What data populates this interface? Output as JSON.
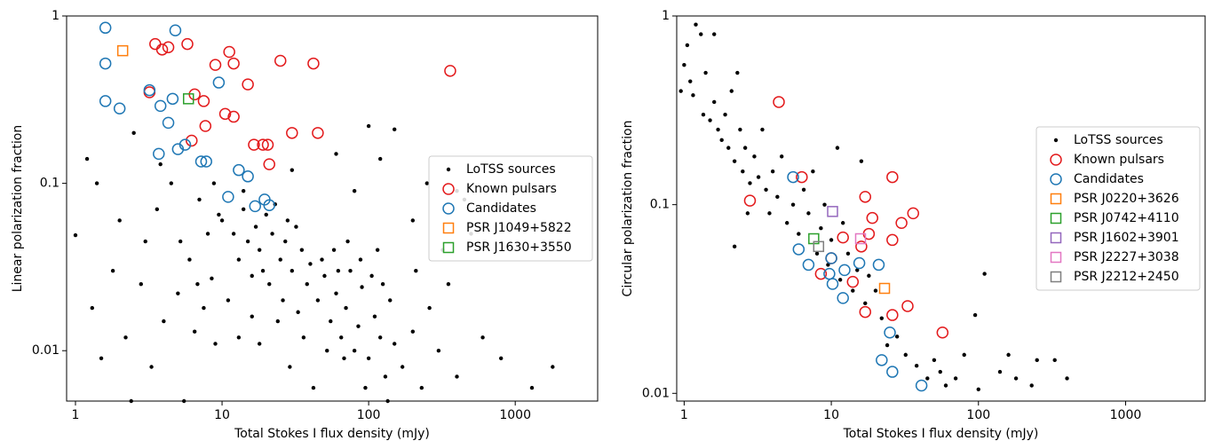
{
  "chart_data": [
    {
      "type": "scatter",
      "xlabel": "Total Stokes I flux density (mJy)",
      "ylabel": "Linear polarization fraction",
      "xscale": "log",
      "yscale": "log",
      "xlim": [
        0.87,
        3650
      ],
      "ylim": [
        0.005,
        1
      ],
      "xticks": [
        1,
        10,
        100,
        1000
      ],
      "yticks": [
        0.01,
        0.1,
        1
      ],
      "legend": "center right",
      "series": [
        {
          "name": "LoTSS sources",
          "marker": "dot",
          "color": "#000000",
          "x": [
            10,
            12,
            14,
            15,
            17,
            18,
            20,
            22,
            25,
            27,
            30,
            32,
            35,
            38,
            40,
            13,
            16,
            19,
            23,
            28,
            45,
            50,
            55,
            60,
            65,
            70,
            75,
            80,
            85,
            90,
            100,
            110,
            120,
            130,
            140,
            150,
            48,
            58,
            68,
            95,
            170,
            200,
            230,
            260,
            300,
            350,
            400,
            500,
            600,
            800,
            1300,
            1800,
            450,
            320,
            210,
            100,
            150,
            120,
            60,
            30,
            250,
            80,
            200,
            400,
            1,
            1.2,
            1.3,
            1.5,
            1.8,
            2,
            2.2,
            2.5,
            2.8,
            3,
            3.3,
            3.6,
            4,
            4.5,
            5,
            5.5,
            6,
            6.5,
            7,
            7.5,
            8,
            8.5,
            9,
            9.5,
            2.4,
            3.8,
            5.2,
            6.8,
            8.8,
            1.4,
            11,
            13,
            14,
            16,
            18,
            21,
            24,
            26,
            29,
            33,
            36,
            42,
            52,
            62,
            72,
            88,
            105,
            115,
            125,
            135
          ],
          "y": [
            0.06,
            0.05,
            0.07,
            0.045,
            0.055,
            0.04,
            0.065,
            0.05,
            0.035,
            0.045,
            0.03,
            0.055,
            0.04,
            0.025,
            0.033,
            0.035,
            0.028,
            0.03,
            0.075,
            0.06,
            0.02,
            0.028,
            0.015,
            0.022,
            0.012,
            0.018,
            0.03,
            0.01,
            0.014,
            0.024,
            0.009,
            0.016,
            0.012,
            0.007,
            0.02,
            0.011,
            0.035,
            0.04,
            0.009,
            0.006,
            0.008,
            0.013,
            0.006,
            0.018,
            0.01,
            0.025,
            0.007,
            0.05,
            0.012,
            0.009,
            0.006,
            0.008,
            0.08,
            0.04,
            0.03,
            0.22,
            0.21,
            0.14,
            0.15,
            0.12,
            0.1,
            0.09,
            0.06,
            0.09,
            0.049,
            0.14,
            0.018,
            0.009,
            0.03,
            0.06,
            0.012,
            0.2,
            0.025,
            0.045,
            0.008,
            0.07,
            0.015,
            0.1,
            0.022,
            0.005,
            0.035,
            0.013,
            0.08,
            0.018,
            0.05,
            0.027,
            0.011,
            0.065,
            0.005,
            0.13,
            0.045,
            0.025,
            0.1,
            0.1,
            0.02,
            0.012,
            0.09,
            0.016,
            0.011,
            0.025,
            0.015,
            0.02,
            0.008,
            0.017,
            0.012,
            0.006,
            0.01,
            0.03,
            0.045,
            0.035,
            0.028,
            0.04,
            0.025,
            0.005
          ]
        },
        {
          "name": "Known pulsars",
          "marker": "circle",
          "color": "#e31a1c",
          "x": [
            3.5,
            3.9,
            4.3,
            5.8,
            11.2,
            12,
            9,
            25,
            42,
            360,
            3.2,
            6.5,
            7.5,
            15,
            10.5,
            12,
            7.7,
            6.2,
            16.5,
            19,
            20.5,
            30,
            45,
            21
          ],
          "y": [
            0.68,
            0.63,
            0.65,
            0.68,
            0.61,
            0.52,
            0.51,
            0.54,
            0.52,
            0.47,
            0.35,
            0.34,
            0.31,
            0.39,
            0.26,
            0.25,
            0.22,
            0.18,
            0.17,
            0.17,
            0.17,
            0.2,
            0.2,
            0.13
          ]
        },
        {
          "name": "Candidates",
          "marker": "circle",
          "color": "#1f77b4",
          "x": [
            1.6,
            4.8,
            1.6,
            9.5,
            1.6,
            2,
            3.2,
            3.8,
            4.6,
            4.3,
            3.7,
            5,
            5.6,
            7.2,
            7.8,
            13,
            15,
            11,
            16.8,
            19.5,
            21
          ],
          "y": [
            0.85,
            0.82,
            0.52,
            0.4,
            0.31,
            0.28,
            0.36,
            0.29,
            0.32,
            0.23,
            0.15,
            0.16,
            0.17,
            0.135,
            0.135,
            0.12,
            0.11,
            0.083,
            0.073,
            0.08,
            0.074
          ]
        },
        {
          "name": "PSR J1049+5822",
          "marker": "square",
          "color": "#ff7f0e",
          "x": [
            2.1
          ],
          "y": [
            0.62
          ]
        },
        {
          "name": "PSR J1630+3550",
          "marker": "square",
          "color": "#2ca02c",
          "x": [
            5.9
          ],
          "y": [
            0.32
          ]
        }
      ]
    },
    {
      "type": "scatter",
      "xlabel": "Total Stokes I flux density (mJy)",
      "ylabel": "Circular polarization fraction",
      "xscale": "log",
      "yscale": "log",
      "xlim": [
        0.89,
        3470
      ],
      "ylim": [
        0.0091,
        1
      ],
      "xticks": [
        1,
        10,
        100,
        1000
      ],
      "yticks": [
        0.01,
        0.1,
        1
      ],
      "legend": "center right",
      "series": [
        {
          "name": "LoTSS sources",
          "marker": "dot",
          "color": "#000000",
          "x": [
            0.95,
            1,
            1.05,
            1.1,
            1.15,
            1.2,
            1.3,
            1.35,
            1.4,
            1.5,
            1.6,
            1.6,
            1.7,
            1.8,
            1.9,
            2,
            2.1,
            2.2,
            2.3,
            2.4,
            2.5,
            2.6,
            2.8,
            3,
            3.2,
            3.4,
            3.6,
            3.8,
            4,
            4.3,
            4.6,
            5,
            5.5,
            6,
            6.5,
            7,
            7.5,
            8,
            8.5,
            9,
            9.5,
            10,
            11,
            11.5,
            12,
            13,
            14,
            15,
            16,
            17,
            18,
            20,
            22,
            24,
            28,
            32,
            38,
            45,
            50,
            55,
            60,
            70,
            80,
            95,
            100,
            110,
            140,
            160,
            180,
            230,
            250,
            330,
            400,
            2.2,
            2.7
          ],
          "y": [
            0.4,
            0.55,
            0.7,
            0.45,
            0.38,
            0.9,
            0.8,
            0.3,
            0.5,
            0.28,
            0.8,
            0.35,
            0.25,
            0.22,
            0.3,
            0.2,
            0.4,
            0.17,
            0.5,
            0.25,
            0.15,
            0.2,
            0.13,
            0.18,
            0.14,
            0.25,
            0.12,
            0.09,
            0.15,
            0.11,
            0.18,
            0.08,
            0.1,
            0.07,
            0.12,
            0.09,
            0.15,
            0.055,
            0.075,
            0.1,
            0.048,
            0.065,
            0.2,
            0.04,
            0.08,
            0.055,
            0.035,
            0.045,
            0.17,
            0.03,
            0.042,
            0.035,
            0.025,
            0.018,
            0.02,
            0.016,
            0.014,
            0.012,
            0.015,
            0.013,
            0.011,
            0.012,
            0.016,
            0.026,
            0.0105,
            0.043,
            0.013,
            0.016,
            0.012,
            0.011,
            0.015,
            0.015,
            0.012,
            0.06,
            0.09
          ]
        },
        {
          "name": "Known pulsars",
          "marker": "circle",
          "color": "#e31a1c",
          "x": [
            4.4,
            6.3,
            2.8,
            26,
            17,
            19,
            30,
            36,
            26,
            18,
            12,
            10,
            8.5,
            14,
            16,
            33,
            17,
            26,
            57
          ],
          "y": [
            0.35,
            0.14,
            0.105,
            0.14,
            0.11,
            0.085,
            0.08,
            0.09,
            0.065,
            0.07,
            0.067,
            0.052,
            0.043,
            0.039,
            0.06,
            0.029,
            0.027,
            0.026,
            0.021
          ]
        },
        {
          "name": "Candidates",
          "marker": "circle",
          "color": "#1f77b4",
          "x": [
            5.5,
            6,
            7,
            9.7,
            10.2,
            10,
            12,
            15.5,
            21,
            25,
            22,
            26,
            41,
            12.3
          ],
          "y": [
            0.14,
            0.058,
            0.048,
            0.043,
            0.038,
            0.052,
            0.032,
            0.049,
            0.048,
            0.021,
            0.015,
            0.013,
            0.011,
            0.045
          ]
        },
        {
          "name": "PSR J0220+3626",
          "marker": "square",
          "color": "#ff7f0e",
          "x": [
            23
          ],
          "y": [
            0.036
          ]
        },
        {
          "name": "PSR J0742+4110",
          "marker": "square",
          "color": "#2ca02c",
          "x": [
            7.6
          ],
          "y": [
            0.066
          ]
        },
        {
          "name": "PSR J1602+3901",
          "marker": "square",
          "color": "#9467bd",
          "x": [
            10.2
          ],
          "y": [
            0.092
          ]
        },
        {
          "name": "PSR J2227+3038",
          "marker": "square",
          "color": "#e377c2",
          "x": [
            15.8
          ],
          "y": [
            0.066
          ]
        },
        {
          "name": "PSR J2212+2450",
          "marker": "square",
          "color": "#7f7f7f",
          "x": [
            8.2
          ],
          "y": [
            0.06
          ]
        }
      ]
    }
  ]
}
